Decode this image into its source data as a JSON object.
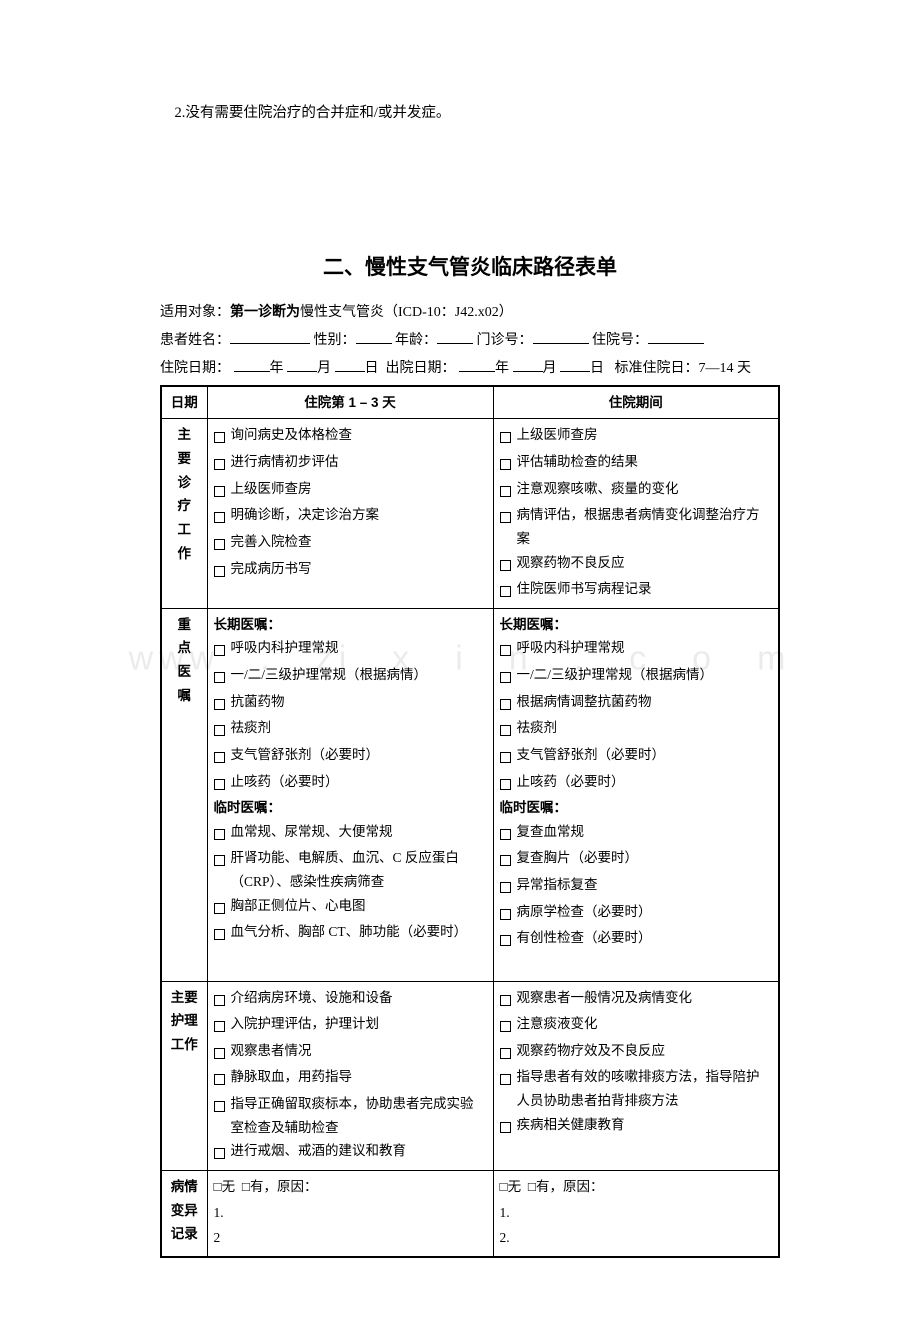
{
  "intro": "2.没有需要住院治疗的合并症和/或并发症。",
  "title": "二、慢性支气管炎临床路径表单",
  "meta": {
    "applicable_prefix": "适用对象：",
    "applicable_bold": "第一诊断为",
    "applicable_rest": "慢性支气管炎（ICD-10：J42.x02）",
    "name_label": "患者姓名：",
    "sex_label": "性别：",
    "age_label": "年龄：",
    "out_no_label": "门诊号：",
    "in_no_label": "住院号：",
    "admit_date_label": "住院日期：",
    "discharge_date_label": "出院日期：",
    "year": "年",
    "month": "月",
    "day": "日",
    "std_label": "标准住院日：7—14 天"
  },
  "headers": {
    "date": "日期",
    "col1": "住院第 1 – 3 天",
    "col2": "住院期间"
  },
  "rows": {
    "work": {
      "label": "主\n要\n诊\n疗\n工\n作",
      "c1": [
        "询问病史及体格检查",
        "进行病情初步评估",
        "上级医师查房",
        "明确诊断，决定诊治方案",
        "完善入院检查",
        "完成病历书写"
      ],
      "c2": [
        "上级医师查房",
        "评估辅助检查的结果",
        "注意观察咳嗽、痰量的变化",
        "病情评估，根据患者病情变化调整治疗方案",
        "观察药物不良反应",
        "住院医师书写病程记录"
      ]
    },
    "orders": {
      "label": "重\n点\n医\n嘱",
      "c1_long_head": "长期医嘱：",
      "c1_long": [
        "呼吸内科护理常规",
        "一/二/三级护理常规（根据病情）",
        "抗菌药物",
        "祛痰剂",
        "支气管舒张剂（必要时）",
        "止咳药（必要时）"
      ],
      "c1_temp_head": "临时医嘱：",
      "c1_temp": [
        "血常规、尿常规、大便常规",
        "肝肾功能、电解质、血沉、C 反应蛋白（CRP）、感染性疾病筛查",
        "胸部正侧位片、心电图",
        "血气分析、胸部 CT、肺功能（必要时）"
      ],
      "c2_long_head": "长期医嘱：",
      "c2_long": [
        "呼吸内科护理常规",
        "一/二/三级护理常规（根据病情）",
        "根据病情调整抗菌药物",
        "祛痰剂",
        "支气管舒张剂（必要时）",
        "止咳药（必要时）"
      ],
      "c2_temp_head": "临时医嘱：",
      "c2_temp": [
        "复查血常规",
        "复查胸片（必要时）",
        "异常指标复查",
        "病原学检查（必要时）",
        "有创性检查（必要时）"
      ]
    },
    "nursing": {
      "label": "主要\n护理\n工作",
      "c1": [
        "介绍病房环境、设施和设备",
        "入院护理评估，护理计划",
        "观察患者情况",
        "静脉取血，用药指导",
        "指导正确留取痰标本，协助患者完成实验室检查及辅助检查",
        "进行戒烟、戒酒的建议和教育"
      ],
      "c2": [
        "观察患者一般情况及病情变化",
        "注意痰液变化",
        "观察药物疗效及不良反应",
        "指导患者有效的咳嗽排痰方法，指导陪护人员协助患者拍背排痰方法",
        "疾病相关健康教育"
      ]
    },
    "variance": {
      "label": "病情\n变异\n记录",
      "none": "□无",
      "has": "□有，原因：",
      "l1": "1.",
      "l2_a": "2",
      "l2_b": "2."
    }
  },
  "watermark": "www　.　zi　x　i　n　.　c　o　m",
  "colors": {
    "text": "#000000",
    "bg": "#ffffff",
    "border": "#000000"
  }
}
